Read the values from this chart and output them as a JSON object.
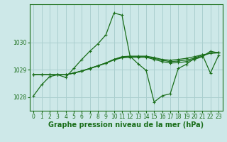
{
  "bg_color": "#cde8e8",
  "grid_color": "#aacfcf",
  "line_color": "#1a6e1a",
  "xlabel": "Graphe pression niveau de la mer (hPa)",
  "xlabel_fontsize": 7,
  "tick_fontsize": 5.5,
  "ylim": [
    1027.5,
    1031.4
  ],
  "yticks": [
    1028,
    1029,
    1030
  ],
  "xlim": [
    -0.5,
    23.5
  ],
  "xticks": [
    0,
    1,
    2,
    3,
    4,
    5,
    6,
    7,
    8,
    9,
    10,
    11,
    12,
    13,
    14,
    15,
    16,
    17,
    18,
    19,
    20,
    21,
    22,
    23
  ],
  "series": [
    [
      1028.05,
      1028.45,
      1028.75,
      1028.82,
      1028.72,
      1029.05,
      1029.38,
      1029.68,
      1029.95,
      1030.28,
      1031.08,
      1031.0,
      1029.5,
      1029.22,
      1028.98,
      1027.82,
      1028.05,
      1028.12,
      1029.05,
      1029.2,
      1029.42,
      1029.55,
      1028.88,
      1029.52
    ],
    [
      1028.82,
      1028.82,
      1028.82,
      1028.82,
      1028.82,
      1028.88,
      1028.96,
      1029.05,
      1029.15,
      1029.25,
      1029.38,
      1029.48,
      1029.5,
      1029.5,
      1029.5,
      1029.45,
      1029.38,
      1029.35,
      1029.38,
      1029.42,
      1029.48,
      1029.55,
      1029.6,
      1029.62
    ],
    [
      1028.82,
      1028.82,
      1028.82,
      1028.82,
      1028.82,
      1028.88,
      1028.96,
      1029.05,
      1029.15,
      1029.25,
      1029.38,
      1029.46,
      1029.48,
      1029.48,
      1029.48,
      1029.42,
      1029.35,
      1029.3,
      1029.32,
      1029.36,
      1029.42,
      1029.5,
      1029.62,
      1029.64
    ],
    [
      1028.82,
      1028.82,
      1028.82,
      1028.82,
      1028.82,
      1028.88,
      1028.95,
      1029.04,
      1029.14,
      1029.24,
      1029.36,
      1029.44,
      1029.46,
      1029.46,
      1029.46,
      1029.38,
      1029.3,
      1029.25,
      1029.26,
      1029.3,
      1029.38,
      1029.48,
      1029.68,
      1029.62
    ]
  ]
}
